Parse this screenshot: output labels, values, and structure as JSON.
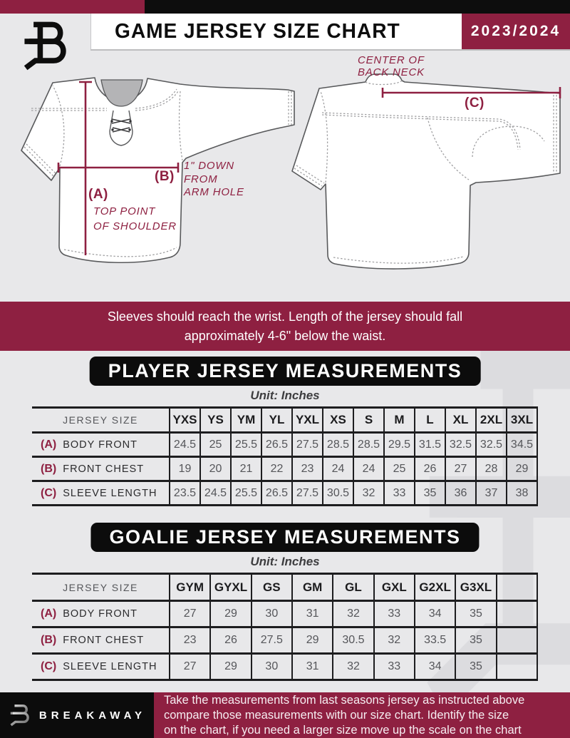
{
  "header": {
    "title": "GAME JERSEY SIZE CHART",
    "season": "2023/2024",
    "logo": "breakaway-b-monogram"
  },
  "diagram": {
    "a_label": "(A)",
    "a_line1": "TOP POINT",
    "a_line2": "OF SHOULDER",
    "b_label": "(B)",
    "b_line1": "1\" DOWN",
    "b_line2": "FROM",
    "b_line3": "ARM HOLE",
    "c_label": "(C)",
    "c_line1": "CENTER OF",
    "c_line2": "BACK NECK"
  },
  "note_banner": {
    "line1": "Sleeves should reach the wrist. Length of the jersey should fall",
    "line2": "approximately 4-6\" below the waist."
  },
  "player_section": {
    "banner": "PLAYER JERSEY MEASUREMENTS",
    "unit": "Unit: Inches",
    "table": {
      "size_header": "JERSEY SIZE",
      "sizes": [
        "YXS",
        "YS",
        "YM",
        "YL",
        "YXL",
        "XS",
        "S",
        "M",
        "L",
        "XL",
        "2XL",
        "3XL"
      ],
      "rows": [
        {
          "key": "(A)",
          "name": "BODY FRONT",
          "values": [
            "24.5",
            "25",
            "25.5",
            "26.5",
            "27.5",
            "28.5",
            "28.5",
            "29.5",
            "31.5",
            "32.5",
            "32.5",
            "34.5"
          ]
        },
        {
          "key": "(B)",
          "name": "FRONT CHEST",
          "values": [
            "19",
            "20",
            "21",
            "22",
            "23",
            "24",
            "24",
            "25",
            "26",
            "27",
            "28",
            "29"
          ]
        },
        {
          "key": "(C)",
          "name": "SLEEVE LENGTH",
          "values": [
            "23.5",
            "24.5",
            "25.5",
            "26.5",
            "27.5",
            "30.5",
            "32",
            "33",
            "35",
            "36",
            "37",
            "38"
          ]
        }
      ]
    }
  },
  "goalie_section": {
    "banner": "GOALIE JERSEY MEASUREMENTS",
    "unit": "Unit: Inches",
    "table": {
      "size_header": "JERSEY SIZE",
      "sizes": [
        "GYM",
        "GYXL",
        "GS",
        "GM",
        "GL",
        "GXL",
        "G2XL",
        "G3XL",
        ""
      ],
      "rows": [
        {
          "key": "(A)",
          "name": "BODY FRONT",
          "values": [
            "27",
            "29",
            "30",
            "31",
            "32",
            "33",
            "34",
            "35",
            ""
          ]
        },
        {
          "key": "(B)",
          "name": "FRONT CHEST",
          "values": [
            "23",
            "26",
            "27.5",
            "29",
            "30.5",
            "32",
            "33.5",
            "35",
            ""
          ]
        },
        {
          "key": "(C)",
          "name": "SLEEVE LENGTH",
          "values": [
            "27",
            "29",
            "30",
            "31",
            "32",
            "33",
            "34",
            "35",
            ""
          ]
        }
      ]
    }
  },
  "footer": {
    "brand": "BREAKAWAY",
    "line1": "Take the measurements from last seasons jersey as instructed above",
    "line2": "compare those measurements  with our size chart. Identify the size",
    "line3": "on the chart, if you need a larger size move up the scale on the chart"
  },
  "colors": {
    "maroon": "#8e2041",
    "black": "#0c0c0c",
    "page_bg": "#e8e8ea",
    "table_text_gray": "#55565a"
  }
}
